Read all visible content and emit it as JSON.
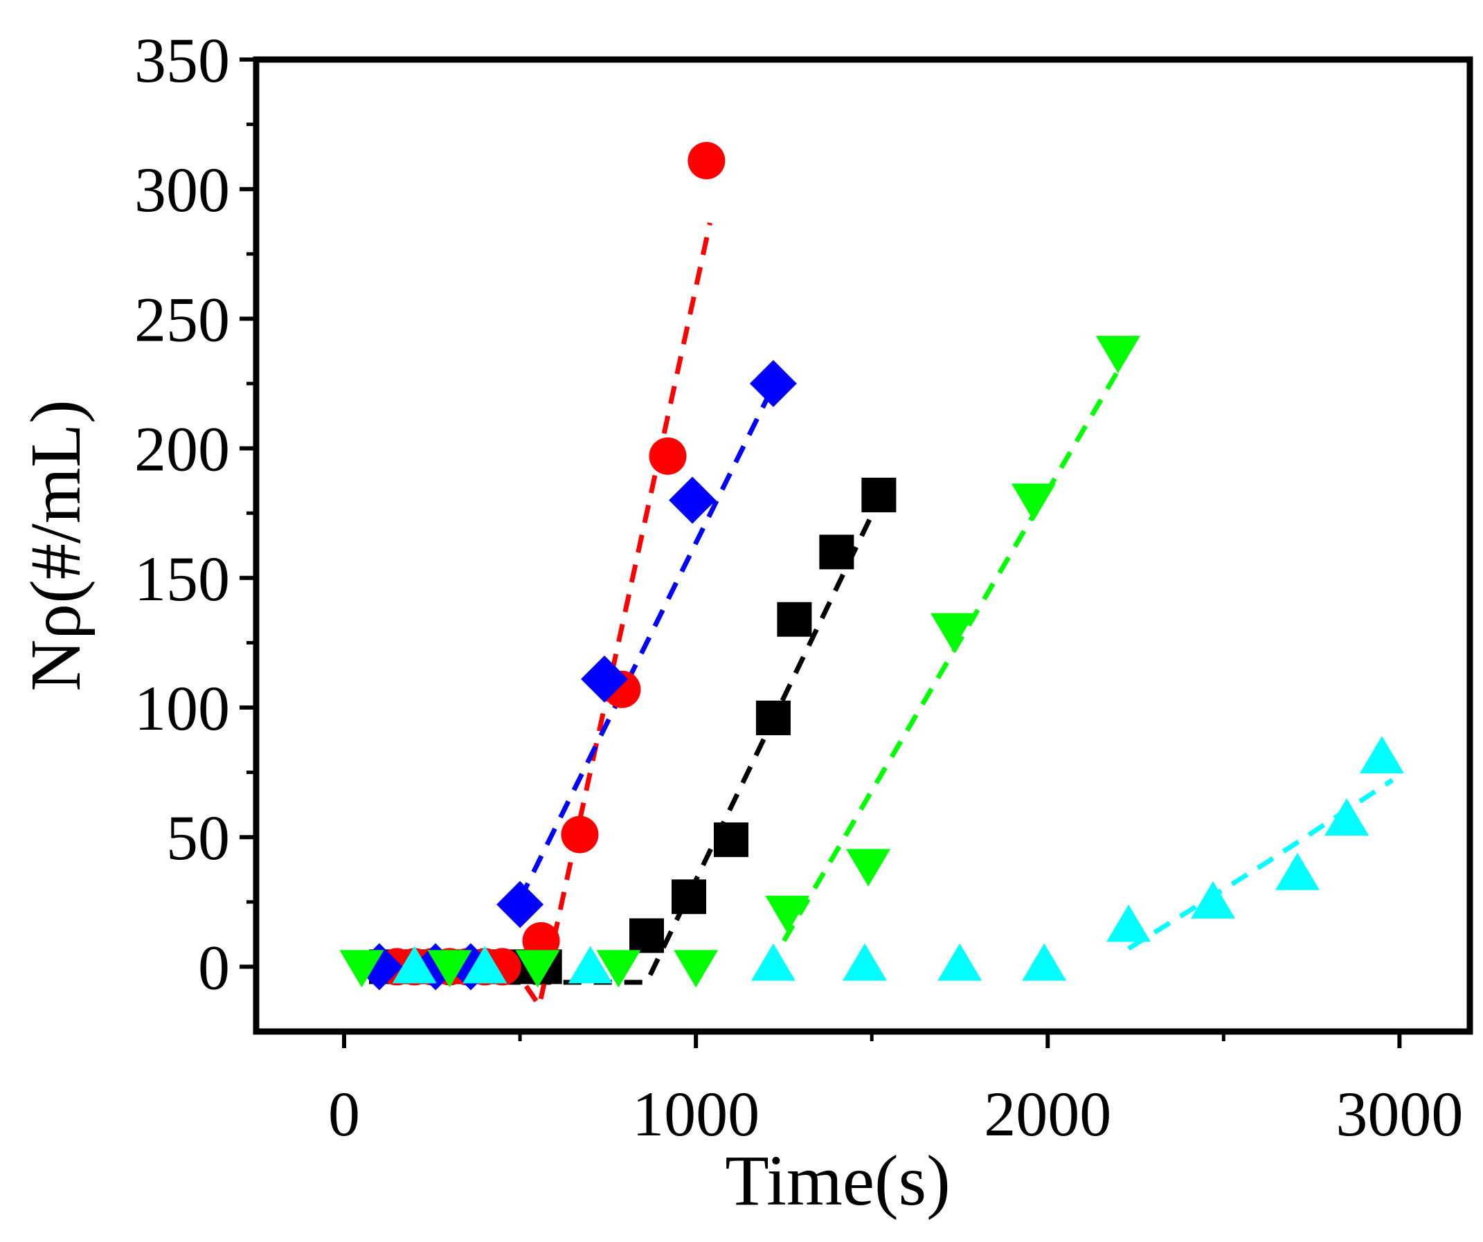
{
  "chart_data": {
    "type": "scatter",
    "title": "",
    "xlabel": "Time(s)",
    "ylabel": "Nρ(#/mL)",
    "xlim": [
      -250,
      3200
    ],
    "ylim": [
      -25,
      350
    ],
    "xticks": [
      0,
      1000,
      2000,
      3000
    ],
    "xtick_labels": [
      "0",
      "1000",
      "2000",
      "3000"
    ],
    "yticks": [
      0,
      50,
      100,
      150,
      200,
      250,
      300,
      350
    ],
    "ytick_labels": [
      "0",
      "50",
      "100",
      "150",
      "200",
      "250",
      "300",
      "350"
    ],
    "grid": false,
    "legend": "none",
    "series": [
      {
        "name": "black squares",
        "color": "#000000",
        "marker": "square",
        "x": [
          120,
          220,
          320,
          420,
          490,
          570,
          860,
          980,
          1100,
          1220,
          1280,
          1400,
          1520
        ],
        "y": [
          0,
          0,
          0,
          0,
          0,
          0,
          12,
          27,
          49,
          96,
          134,
          160,
          182
        ],
        "fit": [
          [
            450,
            -6
          ],
          [
            860,
            -6
          ],
          [
            1520,
            180
          ]
        ]
      },
      {
        "name": "red circles",
        "color": "#ff0000",
        "marker": "circle",
        "x": [
          150,
          200,
          250,
          300,
          350,
          400,
          450,
          560,
          670,
          790,
          920,
          1030
        ],
        "y": [
          0,
          0,
          0,
          0,
          0,
          0,
          0,
          10,
          51,
          107,
          197,
          311
        ],
        "fit": [
          [
            200,
            0
          ],
          [
            480,
            0
          ],
          [
            555,
            -15
          ],
          [
            1040,
            287
          ]
        ]
      },
      {
        "name": "blue diamonds",
        "color": "#0000ff",
        "marker": "diamond",
        "x": [
          100,
          260,
          360,
          500,
          740,
          990,
          1220
        ],
        "y": [
          0,
          0,
          0,
          24,
          111,
          180,
          225
        ],
        "fit": [
          [
            500,
            26
          ],
          [
            1220,
            224
          ]
        ]
      },
      {
        "name": "green down-triangles",
        "color": "#00ff00",
        "marker": "triangle-down",
        "x": [
          50,
          300,
          550,
          780,
          1000,
          1260,
          1490,
          1730,
          1960,
          2200
        ],
        "y": [
          0,
          0,
          0,
          0,
          0,
          21,
          39,
          130,
          180,
          237
        ],
        "fit": [
          [
            1250,
            10
          ],
          [
            2200,
            230
          ]
        ]
      },
      {
        "name": "cyan up-triangles",
        "color": "#00ffff",
        "marker": "triangle-up",
        "x": [
          200,
          400,
          700,
          1220,
          1480,
          1750,
          1990,
          2230,
          2470,
          2710,
          2850,
          2950
        ],
        "y": [
          0,
          0,
          0,
          1,
          1,
          1,
          1,
          16,
          25,
          36,
          57,
          81
        ],
        "fit": [
          [
            2230,
            7
          ],
          [
            2620,
            40
          ],
          [
            2980,
            72
          ]
        ]
      }
    ]
  }
}
